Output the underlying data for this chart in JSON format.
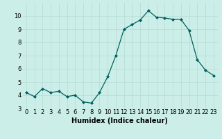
{
  "x": [
    0,
    1,
    2,
    3,
    4,
    5,
    6,
    7,
    8,
    9,
    10,
    11,
    12,
    13,
    14,
    15,
    16,
    17,
    18,
    19,
    20,
    21,
    22,
    23
  ],
  "y": [
    4.2,
    3.9,
    4.5,
    4.2,
    4.3,
    3.9,
    4.0,
    3.5,
    3.4,
    4.2,
    5.4,
    7.0,
    9.0,
    9.35,
    9.7,
    10.4,
    9.9,
    9.85,
    9.75,
    9.75,
    8.9,
    6.7,
    5.9,
    5.5
  ],
  "line_color": "#006060",
  "marker_color": "#006060",
  "bg_color": "#cceee8",
  "grid_color": "#b8ddd8",
  "xlabel": "Humidex (Indice chaleur)",
  "ylabel": "",
  "ylim": [
    3,
    11
  ],
  "xlim": [
    -0.5,
    23.5
  ],
  "yticks": [
    3,
    4,
    5,
    6,
    7,
    8,
    9,
    10
  ],
  "xticks": [
    0,
    1,
    2,
    3,
    4,
    5,
    6,
    7,
    8,
    9,
    10,
    11,
    12,
    13,
    14,
    15,
    16,
    17,
    18,
    19,
    20,
    21,
    22,
    23
  ],
  "xtick_labels": [
    "0",
    "1",
    "2",
    "3",
    "4",
    "5",
    "6",
    "7",
    "8",
    "9",
    "10",
    "11",
    "12",
    "13",
    "14",
    "15",
    "16",
    "17",
    "18",
    "19",
    "20",
    "21",
    "22",
    "23"
  ],
  "xlabel_fontsize": 7,
  "tick_fontsize": 6
}
